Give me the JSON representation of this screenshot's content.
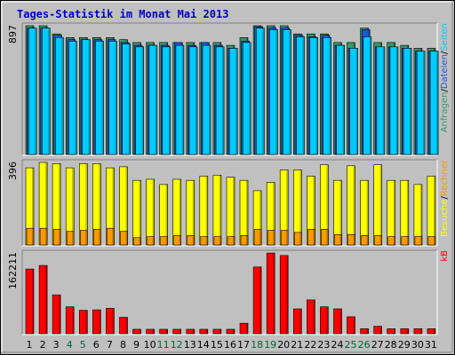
{
  "title": "Tages-Statistik im Monat Mai 2013",
  "colors": {
    "background": "#c0c0c0",
    "title_text": "#0000cc",
    "anfragen": "#339966",
    "dateien": "#2255dd",
    "seiten": "#00ccff",
    "besuche": "#ffff00",
    "rechner": "#ff9900",
    "kb": "#ff0000",
    "weekday_text": "#000000",
    "weekend_text": "#006633"
  },
  "chart_data": [
    {
      "type": "bar",
      "id": "hits",
      "ymax_label": "897",
      "ymax": 897,
      "legend": [
        {
          "text": "Anfragen",
          "color": "#339966"
        },
        {
          "text": "/",
          "color": "#000000"
        },
        {
          "text": "Dateien",
          "color": "#2255dd"
        },
        {
          "text": "/",
          "color": "#000000"
        },
        {
          "text": "Seiten",
          "color": "#00ccff"
        }
      ],
      "series": [
        {
          "name": "Anfragen",
          "values": [
            897,
            897,
            840,
            815,
            815,
            815,
            815,
            800,
            780,
            780,
            780,
            780,
            780,
            780,
            780,
            760,
            815,
            897,
            897,
            897,
            840,
            840,
            840,
            780,
            780,
            880,
            780,
            780,
            760,
            740,
            740
          ]
        },
        {
          "name": "Dateien",
          "values": [
            880,
            880,
            830,
            800,
            800,
            800,
            800,
            780,
            760,
            760,
            760,
            780,
            760,
            780,
            760,
            740,
            790,
            890,
            880,
            880,
            830,
            820,
            830,
            760,
            740,
            870,
            750,
            750,
            740,
            720,
            720
          ]
        },
        {
          "name": "Seiten",
          "values": [
            880,
            880,
            815,
            790,
            800,
            790,
            790,
            770,
            750,
            760,
            750,
            760,
            750,
            760,
            750,
            740,
            780,
            880,
            870,
            870,
            820,
            815,
            815,
            760,
            740,
            820,
            750,
            750,
            740,
            720,
            720
          ]
        }
      ]
    },
    {
      "type": "bar",
      "id": "visits",
      "ymax_label": "396",
      "ymax": 396,
      "legend": [
        {
          "text": "Besuche",
          "color": "#ffff00"
        },
        {
          "text": "/",
          "color": "#000000"
        },
        {
          "text": "Rechner",
          "color": "#ff9900"
        }
      ],
      "series": [
        {
          "name": "Besuche",
          "values": [
            370,
            396,
            390,
            370,
            390,
            390,
            370,
            375,
            310,
            315,
            290,
            315,
            310,
            330,
            335,
            325,
            310,
            260,
            300,
            360,
            360,
            330,
            385,
            310,
            380,
            310,
            385,
            310,
            310,
            290,
            330
          ]
        },
        {
          "name": "Rechner",
          "values": [
            80,
            80,
            75,
            65,
            70,
            75,
            80,
            65,
            35,
            40,
            40,
            45,
            45,
            40,
            40,
            40,
            45,
            75,
            70,
            70,
            60,
            75,
            75,
            50,
            50,
            45,
            45,
            40,
            40,
            40,
            40
          ]
        }
      ]
    },
    {
      "type": "bar",
      "id": "kb",
      "ymax_label": "162211",
      "ymax": 162211,
      "legend": [
        {
          "text": "kB",
          "color": "#ff0000"
        }
      ],
      "series": [
        {
          "name": "kB",
          "values": [
            130000,
            137000,
            78000,
            54000,
            47000,
            48000,
            51000,
            33000,
            9000,
            9000,
            9000,
            9000,
            9000,
            9000,
            9000,
            9000,
            21000,
            134000,
            162000,
            157000,
            50000,
            68000,
            54000,
            50000,
            34000,
            10000,
            15000,
            10000,
            10000,
            10000,
            10000
          ]
        }
      ]
    }
  ],
  "days": [
    "1",
    "2",
    "3",
    "4",
    "5",
    "6",
    "7",
    "8",
    "9",
    "10",
    "11",
    "12",
    "13",
    "14",
    "15",
    "16",
    "17",
    "18",
    "19",
    "20",
    "21",
    "22",
    "23",
    "24",
    "25",
    "26",
    "27",
    "28",
    "29",
    "30",
    "31"
  ],
  "weekend_days": [
    "4",
    "5",
    "11",
    "12",
    "18",
    "19",
    "25",
    "26"
  ]
}
